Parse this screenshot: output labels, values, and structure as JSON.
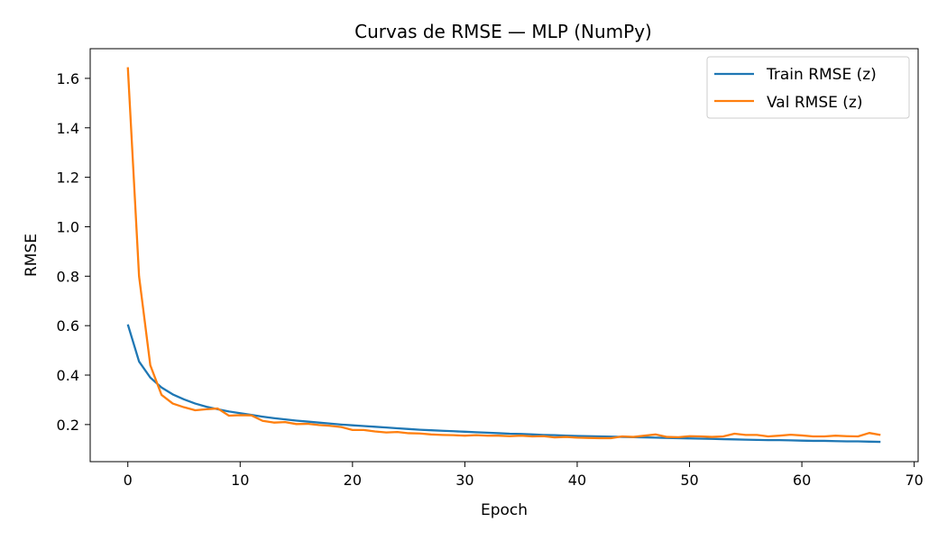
{
  "chart_data": {
    "type": "line",
    "title": "Curvas de RMSE — MLP (NumPy)",
    "xlabel": "Epoch",
    "ylabel": "RMSE",
    "xlim": [
      -3.35,
      70.35
    ],
    "ylim": [
      0.05,
      1.72
    ],
    "xticks": [
      0,
      10,
      20,
      30,
      40,
      50,
      60,
      70
    ],
    "yticks": [
      0.2,
      0.4,
      0.6,
      0.8,
      1.0,
      1.2,
      1.4,
      1.6
    ],
    "xtick_labels": [
      "0",
      "10",
      "20",
      "30",
      "40",
      "50",
      "60",
      "70"
    ],
    "ytick_labels": [
      "0.2",
      "0.4",
      "0.6",
      "0.8",
      "1.0",
      "1.2",
      "1.4",
      "1.6"
    ],
    "grid": false,
    "legend_position": "top-right",
    "series": [
      {
        "name": "Train RMSE (z)",
        "color": "#1f77b4",
        "values": [
          0.605,
          0.455,
          0.39,
          0.35,
          0.322,
          0.302,
          0.285,
          0.272,
          0.262,
          0.253,
          0.246,
          0.239,
          0.232,
          0.226,
          0.221,
          0.216,
          0.212,
          0.208,
          0.204,
          0.2,
          0.197,
          0.194,
          0.191,
          0.188,
          0.185,
          0.182,
          0.179,
          0.177,
          0.175,
          0.173,
          0.171,
          0.169,
          0.167,
          0.165,
          0.163,
          0.162,
          0.16,
          0.158,
          0.157,
          0.155,
          0.154,
          0.153,
          0.152,
          0.151,
          0.15,
          0.149,
          0.148,
          0.147,
          0.146,
          0.145,
          0.144,
          0.143,
          0.142,
          0.141,
          0.14,
          0.139,
          0.138,
          0.137,
          0.137,
          0.136,
          0.135,
          0.134,
          0.134,
          0.133,
          0.132,
          0.132,
          0.131,
          0.13
        ]
      },
      {
        "name": "Val RMSE (z)",
        "color": "#ff7f0e",
        "values": [
          1.645,
          0.8,
          0.44,
          0.32,
          0.285,
          0.27,
          0.258,
          0.262,
          0.265,
          0.236,
          0.238,
          0.237,
          0.215,
          0.208,
          0.21,
          0.202,
          0.203,
          0.198,
          0.195,
          0.19,
          0.178,
          0.178,
          0.172,
          0.168,
          0.17,
          0.165,
          0.164,
          0.16,
          0.158,
          0.157,
          0.155,
          0.157,
          0.155,
          0.155,
          0.153,
          0.155,
          0.152,
          0.153,
          0.148,
          0.15,
          0.147,
          0.146,
          0.145,
          0.145,
          0.152,
          0.15,
          0.155,
          0.16,
          0.15,
          0.149,
          0.153,
          0.152,
          0.15,
          0.152,
          0.163,
          0.158,
          0.158,
          0.152,
          0.155,
          0.159,
          0.156,
          0.152,
          0.152,
          0.155,
          0.153,
          0.152,
          0.166,
          0.158
        ]
      }
    ]
  }
}
